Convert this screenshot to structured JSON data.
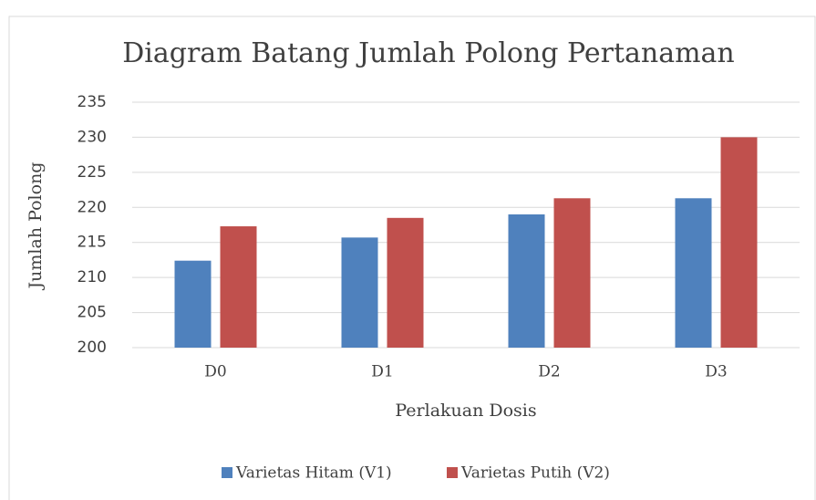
{
  "chart_data": {
    "type": "bar",
    "title": "Diagram Batang Jumlah Polong Pertanaman",
    "x_label": "Perlakuan Dosis",
    "y_label": "Jumlah Polong",
    "categories": [
      "D0",
      "D1",
      "D2",
      "D3"
    ],
    "series": [
      {
        "name": "Varietas Hitam (V1)",
        "color": "#4f81bd",
        "values": [
          212.4,
          215.7,
          219,
          221.3
        ]
      },
      {
        "name": "Varietas Putih (V2)",
        "color": "#c0504d",
        "values": [
          217.3,
          218.5,
          221.3,
          230
        ]
      }
    ],
    "ylim": [
      200,
      235
    ],
    "yticks": [
      200,
      205,
      210,
      215,
      220,
      225,
      230,
      235
    ],
    "grid": true,
    "legend": "bottom"
  }
}
